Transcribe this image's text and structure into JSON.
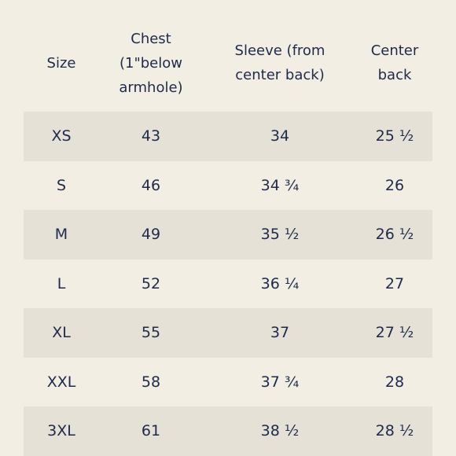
{
  "table": {
    "headers": [
      "Size",
      "Chest\n(1\"below\narmhole)",
      "Sleeve (from\ncenter back)",
      "Center\nback"
    ],
    "rows": [
      [
        "XS",
        "43",
        "34",
        "25 ½"
      ],
      [
        "S",
        "46",
        "34 ¾",
        "26"
      ],
      [
        "M",
        "49",
        "35 ½",
        "26 ½"
      ],
      [
        "L",
        "52",
        "36 ¼",
        "27"
      ],
      [
        "XL",
        "55",
        "37",
        "27 ½"
      ],
      [
        "XXL",
        "58",
        "37 ¾",
        "28"
      ],
      [
        "3XL",
        "61",
        "38 ½",
        "28 ½"
      ]
    ]
  },
  "colors": {
    "background": "#f2eee4",
    "row_shade": "#e5e1d7",
    "text": "#1f2a4a"
  }
}
